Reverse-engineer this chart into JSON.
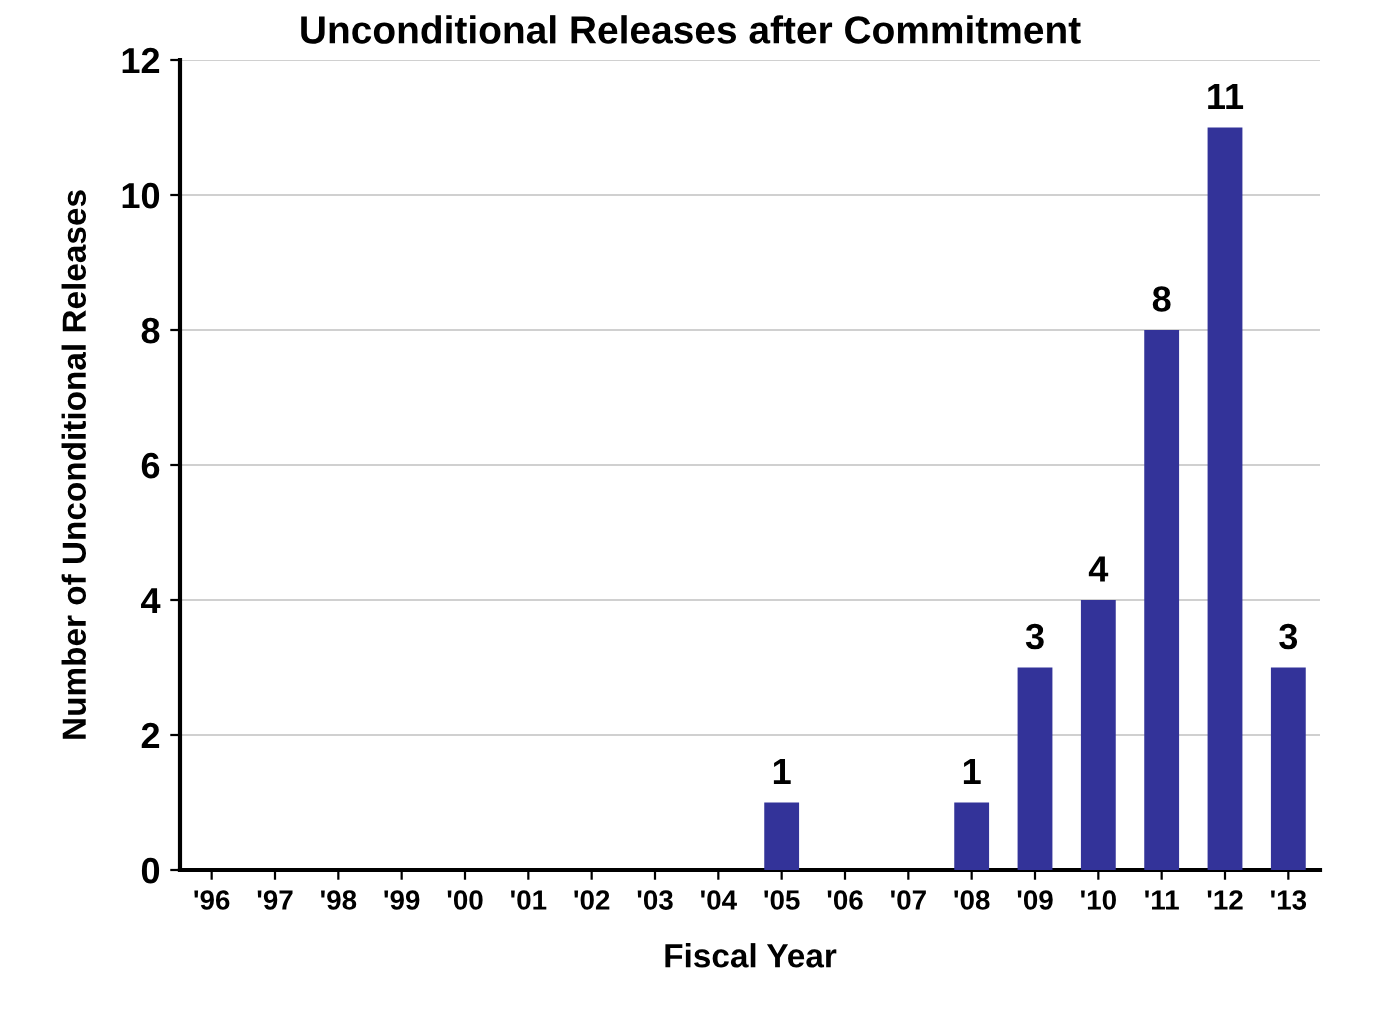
{
  "chart_data": {
    "type": "bar",
    "title": "Unconditional Releases after Commitment",
    "xlabel": "Fiscal Year",
    "ylabel": "Number of Unconditional Releases",
    "categories": [
      "'96",
      "'97",
      "'98",
      "'99",
      "'00",
      "'01",
      "'02",
      "'03",
      "'04",
      "'05",
      "'06",
      "'07",
      "'08",
      "'09",
      "'10",
      "'11",
      "'12",
      "'13"
    ],
    "values": [
      0,
      0,
      0,
      0,
      0,
      0,
      0,
      0,
      0,
      1,
      0,
      0,
      1,
      3,
      4,
      8,
      11,
      3
    ],
    "value_labels": [
      null,
      null,
      null,
      null,
      null,
      null,
      null,
      null,
      null,
      "1",
      null,
      null,
      "1",
      "3",
      "4",
      "8",
      "11",
      "3"
    ],
    "color": "#333399",
    "ylim": [
      0,
      12
    ],
    "yticks": [
      0,
      2,
      4,
      6,
      8,
      10,
      12
    ],
    "grid": "y"
  }
}
